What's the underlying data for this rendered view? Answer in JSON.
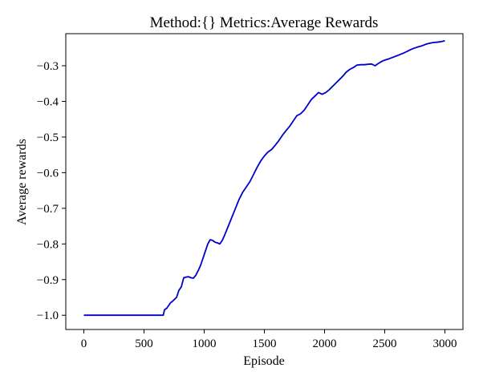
{
  "chart_data": {
    "type": "line",
    "title": "Method:{}   Metrics:Average Rewards",
    "xlabel": "Episode",
    "ylabel": "Average rewards",
    "xlim": [
      -150,
      3150
    ],
    "ylim": [
      -1.04,
      -0.21
    ],
    "xticks": [
      0,
      500,
      1000,
      1500,
      2000,
      2500,
      3000
    ],
    "xtick_labels": [
      "0",
      "500",
      "1000",
      "1500",
      "2000",
      "2500",
      "3000"
    ],
    "yticks": [
      -1.0,
      -0.9,
      -0.8,
      -0.7,
      -0.6,
      -0.5,
      -0.4,
      -0.3
    ],
    "ytick_labels": [
      "−1.0",
      "−0.9",
      "−0.8",
      "−0.7",
      "−0.6",
      "−0.5",
      "−0.4",
      "−0.3"
    ],
    "grid": false,
    "line_color": "#0000cc",
    "series": [
      {
        "x": [
          0,
          660,
          670,
          690,
          720,
          740,
          770,
          790,
          810,
          830,
          850,
          870,
          890,
          910,
          930,
          950,
          970,
          990,
          1010,
          1030,
          1050,
          1070,
          1090,
          1110,
          1130,
          1150,
          1170,
          1200,
          1230,
          1260,
          1290,
          1320,
          1350,
          1380,
          1410,
          1440,
          1470,
          1500,
          1530,
          1560,
          1590,
          1620,
          1650,
          1680,
          1710,
          1740,
          1770,
          1800,
          1830,
          1860,
          1890,
          1920,
          1950,
          1980,
          2010,
          2040,
          2060,
          2090,
          2120,
          2150,
          2180,
          2210,
          2240,
          2270,
          2300,
          2330,
          2360,
          2390,
          2420,
          2450,
          2480,
          2510,
          2540,
          2570,
          2600,
          2630,
          2660,
          2690,
          2720,
          2750,
          2780,
          2810,
          2840,
          2870,
          2900,
          2930,
          2960,
          3000
        ],
        "y": [
          -1.0,
          -1.0,
          -0.985,
          -0.98,
          -0.965,
          -0.96,
          -0.95,
          -0.93,
          -0.92,
          -0.895,
          -0.893,
          -0.892,
          -0.895,
          -0.896,
          -0.888,
          -0.875,
          -0.86,
          -0.84,
          -0.82,
          -0.8,
          -0.788,
          -0.79,
          -0.795,
          -0.797,
          -0.8,
          -0.79,
          -0.775,
          -0.75,
          -0.725,
          -0.7,
          -0.675,
          -0.655,
          -0.64,
          -0.625,
          -0.605,
          -0.585,
          -0.567,
          -0.553,
          -0.542,
          -0.535,
          -0.523,
          -0.51,
          -0.495,
          -0.482,
          -0.47,
          -0.455,
          -0.44,
          -0.435,
          -0.425,
          -0.41,
          -0.395,
          -0.385,
          -0.375,
          -0.38,
          -0.375,
          -0.367,
          -0.36,
          -0.35,
          -0.34,
          -0.33,
          -0.318,
          -0.31,
          -0.305,
          -0.298,
          -0.297,
          -0.297,
          -0.296,
          -0.295,
          -0.3,
          -0.293,
          -0.287,
          -0.283,
          -0.28,
          -0.276,
          -0.272,
          -0.268,
          -0.264,
          -0.259,
          -0.254,
          -0.25,
          -0.247,
          -0.244,
          -0.24,
          -0.237,
          -0.235,
          -0.234,
          -0.233,
          -0.23
        ]
      }
    ]
  }
}
